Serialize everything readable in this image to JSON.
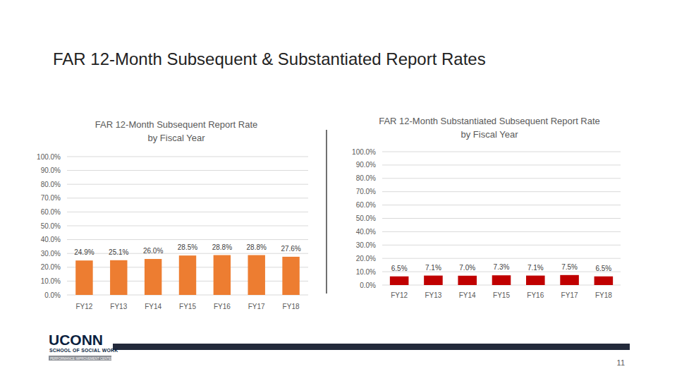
{
  "slide": {
    "title": "FAR 12-Month Subsequent & Substantiated Report Rates",
    "logo": "UCONN",
    "logo_subtitle": "SCHOOL OF SOCIAL WORK",
    "logo_caption": "PERFORMANCE IMPROVEMENT CENTER",
    "page_number": "11"
  },
  "chart_data": [
    {
      "type": "bar",
      "title": "FAR 12-Month Subsequent Report Rate\nby Fiscal Year",
      "categories": [
        "FY12",
        "FY13",
        "FY14",
        "FY15",
        "FY16",
        "FY17",
        "FY18"
      ],
      "values": [
        24.9,
        25.1,
        26.0,
        28.5,
        28.8,
        28.8,
        27.6
      ],
      "value_labels": [
        "24.9%",
        "25.1%",
        "26.0%",
        "28.5%",
        "28.8%",
        "28.8%",
        "27.6%"
      ],
      "color": "#ed7d31",
      "ylim": [
        0,
        100
      ],
      "yticks": [
        {
          "value": 0,
          "label": "0.0%"
        },
        {
          "value": 10,
          "label": "10.0%"
        },
        {
          "value": 20,
          "label": "20.0%"
        },
        {
          "value": 30,
          "label": "30.0%"
        },
        {
          "value": 40,
          "label": "40.0%"
        },
        {
          "value": 50,
          "label": "50.0%"
        },
        {
          "value": 60,
          "label": "60.0%"
        },
        {
          "value": 70,
          "label": "70.0%"
        },
        {
          "value": 80,
          "label": "80.0%"
        },
        {
          "value": 90,
          "label": "90.0%"
        },
        {
          "value": 100,
          "label": "100.0%"
        }
      ],
      "grid": true,
      "data_labels": true
    },
    {
      "type": "bar",
      "title": "FAR 12-Month Substantiated Subsequent Report Rate\nby Fiscal Year",
      "categories": [
        "FY12",
        "FY13",
        "FY14",
        "FY15",
        "FY16",
        "FY17",
        "FY18"
      ],
      "values": [
        6.5,
        7.1,
        7.0,
        7.3,
        7.1,
        7.5,
        6.5
      ],
      "value_labels": [
        "6.5%",
        "7.1%",
        "7.0%",
        "7.3%",
        "7.1%",
        "7.5%",
        "6.5%"
      ],
      "color": "#c00000",
      "ylim": [
        0,
        100
      ],
      "yticks": [
        {
          "value": 0,
          "label": "0.0%"
        },
        {
          "value": 10,
          "label": "10.0%"
        },
        {
          "value": 20,
          "label": "20.0%"
        },
        {
          "value": 30,
          "label": "30.0%"
        },
        {
          "value": 40,
          "label": "40.0%"
        },
        {
          "value": 50,
          "label": "50.0%"
        },
        {
          "value": 60,
          "label": "60.0%"
        },
        {
          "value": 70,
          "label": "70.0%"
        },
        {
          "value": 80,
          "label": "80.0%"
        },
        {
          "value": 90,
          "label": "90.0%"
        },
        {
          "value": 100,
          "label": "100.0%"
        }
      ],
      "grid": true,
      "data_labels": true
    }
  ]
}
